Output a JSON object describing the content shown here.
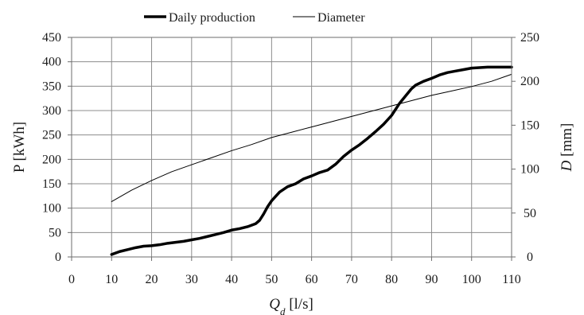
{
  "chart_data": {
    "type": "line",
    "legend": {
      "placement": "top-center",
      "entries": [
        "Daily production",
        "Diameter"
      ]
    },
    "grid": true,
    "x_axis": {
      "label": "Qd [l/s]",
      "label_main": "Q",
      "label_sub": "d",
      "label_unit": " [l/s]",
      "range": [
        0,
        110
      ],
      "ticks": [
        "0",
        "10",
        "20",
        "30",
        "40",
        "50",
        "60",
        "70",
        "80",
        "90",
        "100",
        "110"
      ]
    },
    "y_axis_left": {
      "label": "P  [kWh]",
      "range": [
        0,
        450
      ],
      "ticks": [
        "0",
        "50",
        "100",
        "150",
        "200",
        "250",
        "300",
        "350",
        "400",
        "450"
      ]
    },
    "y_axis_right": {
      "label": "D [mm]",
      "label_main": "D",
      "label_unit": " [mm]",
      "range": [
        0,
        250
      ],
      "ticks": [
        "0",
        "50",
        "100",
        "150",
        "200",
        "250"
      ]
    },
    "series": [
      {
        "name": "Daily production",
        "axis": "left",
        "color": "#000000",
        "line": "thick",
        "x": [
          10,
          12,
          14,
          16,
          18,
          20,
          22,
          24,
          26,
          28,
          30,
          32,
          34,
          36,
          38,
          40,
          42,
          44,
          46,
          47,
          48,
          49,
          50,
          52,
          54,
          56,
          58,
          60,
          62,
          64,
          66,
          68,
          70,
          72,
          74,
          76,
          78,
          80,
          82,
          84,
          85,
          86,
          88,
          90,
          92,
          94,
          96,
          98,
          100,
          102,
          104,
          106,
          108,
          110
        ],
        "values": [
          5,
          11,
          15,
          19,
          22,
          23,
          25,
          28,
          30,
          32,
          35,
          38,
          42,
          46,
          50,
          55,
          58,
          62,
          68,
          75,
          88,
          103,
          115,
          133,
          144,
          150,
          160,
          166,
          173,
          178,
          190,
          206,
          219,
          230,
          243,
          257,
          272,
          290,
          315,
          335,
          345,
          352,
          360,
          366,
          373,
          378,
          381,
          384,
          387,
          388,
          389,
          389,
          389,
          389
        ]
      },
      {
        "name": "Diameter",
        "axis": "right",
        "color": "#000000",
        "line": "thin",
        "x": [
          10,
          15,
          20,
          25,
          30,
          35,
          40,
          45,
          50,
          55,
          60,
          65,
          70,
          75,
          80,
          85,
          90,
          95,
          100,
          105,
          110
        ],
        "values": [
          63,
          76,
          87,
          97,
          105,
          113,
          121,
          128,
          136,
          142,
          148,
          154,
          160,
          166,
          172,
          178,
          184,
          189,
          194,
          200,
          208
        ]
      }
    ]
  }
}
